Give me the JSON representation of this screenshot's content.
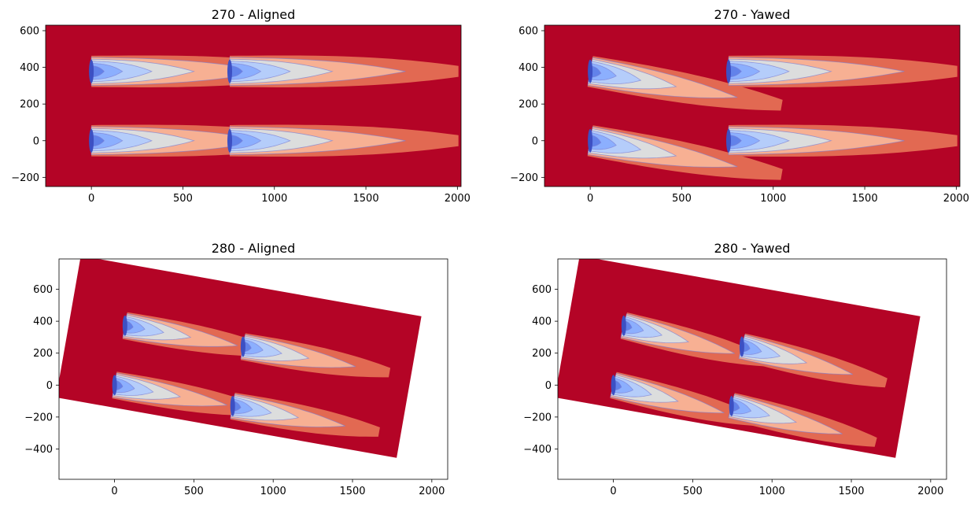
{
  "figure": {
    "colors": {
      "background": "#b40426",
      "level1": "#e26952",
      "level2": "#f7b093",
      "level3": "#dcdddd",
      "level4": "#b5cdfa",
      "level5": "#8caffe",
      "level6": "#6282ea",
      "level7": "#3d50c3",
      "contour_line": "#7b7fd4"
    }
  },
  "chart_data": [
    {
      "type": "heatmap",
      "title": "270 - Aligned",
      "xlim": [
        -250,
        2020
      ],
      "ylim": [
        -250,
        630
      ],
      "xticks": [
        0,
        500,
        1000,
        1500,
        2000
      ],
      "yticks": [
        -200,
        0,
        200,
        400,
        600
      ],
      "rotation_deg": 0,
      "turbines": [
        {
          "x": 0,
          "y": 0,
          "yaw": 0,
          "scale": 1.0
        },
        {
          "x": 0,
          "y": 378,
          "yaw": 0,
          "scale": 1.0
        },
        {
          "x": 756,
          "y": 0,
          "yaw": 0,
          "scale": 1.0
        },
        {
          "x": 756,
          "y": 378,
          "yaw": 0,
          "scale": 1.0
        }
      ]
    },
    {
      "type": "heatmap",
      "title": "270 - Yawed",
      "xlim": [
        -250,
        2020
      ],
      "ylim": [
        -250,
        630
      ],
      "xticks": [
        0,
        500,
        1000,
        1500,
        2000
      ],
      "yticks": [
        -200,
        0,
        200,
        400,
        600
      ],
      "rotation_deg": 0,
      "turbines": [
        {
          "x": 0,
          "y": 0,
          "yaw": 25,
          "scale": 0.85
        },
        {
          "x": 0,
          "y": 378,
          "yaw": 25,
          "scale": 0.85
        },
        {
          "x": 756,
          "y": 0,
          "yaw": 0,
          "scale": 1.0
        },
        {
          "x": 756,
          "y": 378,
          "yaw": 0,
          "scale": 1.0
        }
      ]
    },
    {
      "type": "heatmap",
      "title": "280 - Aligned",
      "xlim": [
        -350,
        2100
      ],
      "ylim": [
        -590,
        790
      ],
      "xticks": [
        0,
        500,
        1000,
        1500,
        2000
      ],
      "yticks": [
        -400,
        -200,
        0,
        200,
        400,
        600
      ],
      "rotation_deg": 10,
      "turbines": [
        {
          "x": 0,
          "y": 0,
          "yaw": 0,
          "scale": 0.75
        },
        {
          "x": 0,
          "y": 378,
          "yaw": 0,
          "scale": 0.75
        },
        {
          "x": 756,
          "y": 0,
          "yaw": 0,
          "scale": 0.75
        },
        {
          "x": 756,
          "y": 378,
          "yaw": 0,
          "scale": 0.75
        }
      ]
    },
    {
      "type": "heatmap",
      "title": "280 - Yawed",
      "xlim": [
        -350,
        2100
      ],
      "ylim": [
        -590,
        790
      ],
      "xticks": [
        0,
        500,
        1000,
        1500,
        2000
      ],
      "yticks": [
        -400,
        -200,
        0,
        200,
        400,
        600
      ],
      "rotation_deg": 10,
      "turbines": [
        {
          "x": 0,
          "y": 0,
          "yaw": 10,
          "scale": 0.75
        },
        {
          "x": 0,
          "y": 378,
          "yaw": 10,
          "scale": 0.75
        },
        {
          "x": 756,
          "y": 0,
          "yaw": 10,
          "scale": 0.75
        },
        {
          "x": 756,
          "y": 378,
          "yaw": 10,
          "scale": 0.75
        }
      ]
    }
  ]
}
